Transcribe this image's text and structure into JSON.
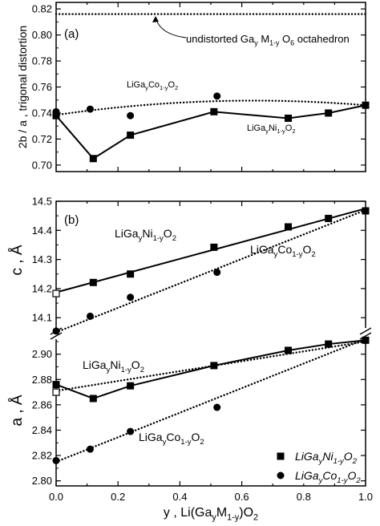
{
  "chart_data": [
    {
      "id": "panel_a",
      "type": "scatter",
      "panel_label": "(a)",
      "ylabel": "2b / a , trigonal distortion",
      "xlim": [
        0,
        1
      ],
      "ylim": [
        0.695,
        0.825
      ],
      "yticks": [
        0.7,
        0.72,
        0.74,
        0.76,
        0.78,
        0.8,
        0.82
      ],
      "series": [
        {
          "name": "LiGa_yNi_1-yO_2",
          "marker": "square",
          "line": "solid",
          "x": [
            0.0,
            0.12,
            0.24,
            0.51,
            0.75,
            0.88,
            1.0
          ],
          "y": [
            0.738,
            0.705,
            0.723,
            0.741,
            0.736,
            0.74,
            0.746
          ]
        },
        {
          "name": "LiGa_yCo_1-yO_2",
          "marker": "circle",
          "line": "none",
          "x": [
            0.0,
            0.11,
            0.24,
            0.52
          ],
          "y": [
            0.741,
            0.743,
            0.738,
            0.753
          ]
        }
      ],
      "fit_lines": [
        {
          "style": "dotted",
          "kind": "quadratic",
          "points": [
            [
              0.0,
              0.7385
            ],
            [
              0.5,
              0.749
            ],
            [
              1.0,
              0.746
            ]
          ]
        },
        {
          "style": "dotted",
          "kind": "hline",
          "y": 0.816
        }
      ],
      "annotations": {
        "undistorted": {
          "parts": [
            "undistorted Ga",
            "y",
            " M",
            "1-y",
            " O",
            "6",
            " octahedron"
          ]
        },
        "co_label": {
          "parts": [
            "LiGa",
            "y",
            "Co",
            "1-y",
            "O",
            "2"
          ]
        },
        "ni_label": {
          "parts": [
            "LiGa",
            "y",
            "Ni",
            "1-y",
            "O",
            "2"
          ]
        }
      }
    },
    {
      "id": "panel_b",
      "type": "scatter",
      "panel_label": "(b)",
      "xlabel_parts": [
        "y , Li(Ga",
        "y",
        "M",
        "1-y",
        ")O",
        "2"
      ],
      "xlim": [
        0,
        1
      ],
      "xticks": [
        0.0,
        0.2,
        0.4,
        0.6,
        0.8,
        1.0
      ],
      "top": {
        "ylabel": "c , Å",
        "ylim": [
          14.04,
          14.5
        ],
        "yticks": [
          14.1,
          14.2,
          14.3,
          14.4,
          14.5
        ],
        "series": [
          {
            "name": "LiGa_yNi_1-yO_2",
            "marker": "square",
            "fit": "solid",
            "x": [
              0.0,
              0.12,
              0.24,
              0.51,
              0.75,
              0.88,
              1.0
            ],
            "y": [
              14.183,
              14.221,
              14.25,
              14.342,
              14.412,
              14.441,
              14.467
            ],
            "open_index": 0
          },
          {
            "name": "LiGa_yCo_1-yO_2",
            "marker": "circle",
            "fit": "dotted",
            "x": [
              0.0,
              0.11,
              0.24,
              0.52
            ],
            "y": [
              14.054,
              14.105,
              14.17,
              14.256
            ]
          }
        ],
        "fit_lines": [
          {
            "style": "solid",
            "points": [
              [
                0.0,
                14.187
              ],
              [
                1.0,
                14.475
              ]
            ]
          },
          {
            "style": "dotted",
            "points": [
              [
                0.0,
                14.05
              ],
              [
                1.0,
                14.47
              ]
            ]
          }
        ],
        "annotations": {
          "ni_label": {
            "parts": [
              "LiGa",
              "y",
              "Ni",
              "1-y",
              "O",
              "2"
            ]
          },
          "co_label": {
            "parts": [
              "LiGa",
              "y",
              "Co",
              "1-y",
              "O",
              "2"
            ]
          }
        }
      },
      "bottom": {
        "ylabel": "a , Å",
        "ylim": [
          2.796,
          2.915
        ],
        "yticks": [
          2.8,
          2.82,
          2.84,
          2.86,
          2.88,
          2.9
        ],
        "series": [
          {
            "name": "LiGa_yNi_1-yO_2",
            "marker": "square",
            "fit": "solid",
            "x": [
              0.0,
              0.12,
              0.24,
              0.51,
              0.75,
              0.88,
              1.0
            ],
            "y": [
              2.876,
              2.865,
              2.875,
              2.891,
              2.903,
              2.908,
              2.911
            ]
          },
          {
            "name": "LiGa_yCo_1-yO_2",
            "marker": "circle",
            "fit": "dotted",
            "x": [
              0.0,
              0.11,
              0.24,
              0.52
            ],
            "y": [
              2.816,
              2.825,
              2.839,
              2.858
            ]
          },
          {
            "name": "LiGa_yNi_1-yO_2 (open)",
            "marker": "open-square",
            "fit": "none",
            "x": [
              0.0
            ],
            "y": [
              2.87
            ]
          }
        ],
        "fit_lines": [
          {
            "style": "solid",
            "points": [
              [
                0.0,
                2.876
              ],
              [
                0.12,
                2.865
              ],
              [
                0.24,
                2.875
              ],
              [
                0.51,
                2.891
              ],
              [
                0.75,
                2.903
              ],
              [
                0.88,
                2.908
              ],
              [
                1.0,
                2.911
              ]
            ]
          },
          {
            "style": "dotted",
            "points": [
              [
                0.0,
                2.871
              ],
              [
                1.0,
                2.91
              ]
            ]
          },
          {
            "style": "dotted",
            "points": [
              [
                0.0,
                2.815
              ],
              [
                1.0,
                2.912
              ]
            ]
          }
        ],
        "annotations": {
          "ni_label": {
            "parts": [
              "LiGa",
              "y",
              "Ni",
              "1-y",
              "O",
              "2"
            ]
          },
          "co_label": {
            "parts": [
              "LiGa",
              "y",
              "Co",
              "1-y",
              "O",
              "2"
            ]
          }
        }
      },
      "legend": {
        "placement": "bottom-right",
        "entries": [
          {
            "marker": "square",
            "parts": [
              "LiGa",
              "y",
              "Ni",
              "1-y",
              "O",
              "2"
            ]
          },
          {
            "marker": "circle",
            "parts": [
              "LiGa",
              "y",
              "Co",
              "1-y",
              "O",
              "2"
            ]
          }
        ]
      }
    }
  ]
}
